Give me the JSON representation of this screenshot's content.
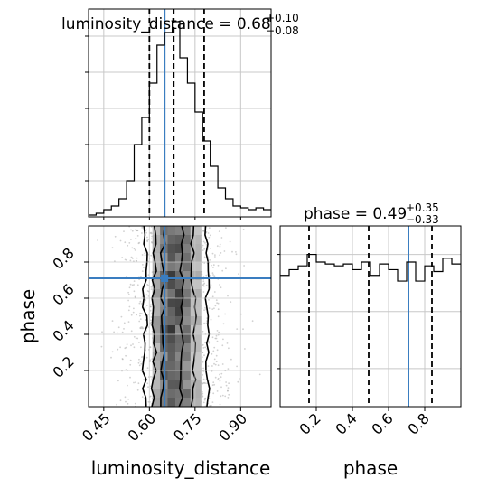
{
  "chart_data": [
    {
      "panel": "marginal",
      "type": "bar",
      "param": "luminosity_distance",
      "title": {
        "label": "luminosity_distance = 0.68",
        "sup": "+0.10",
        "sub": "−0.08"
      },
      "xlim": [
        0.4,
        1.0
      ],
      "bin_edges": [
        0.4,
        0.425,
        0.45,
        0.475,
        0.5,
        0.525,
        0.55,
        0.575,
        0.6,
        0.625,
        0.65,
        0.675,
        0.7,
        0.725,
        0.75,
        0.775,
        0.8,
        0.825,
        0.85,
        0.875,
        0.9,
        0.925,
        0.95,
        0.975,
        1.0
      ],
      "values": [
        1,
        2,
        4,
        6,
        10,
        20,
        40,
        55,
        74,
        95,
        102,
        108,
        88,
        74,
        58,
        42,
        28,
        16,
        10,
        6,
        5,
        4,
        5,
        4
      ],
      "ylim": [
        0,
        115
      ],
      "quantiles": [
        0.6,
        0.68,
        0.78
      ],
      "truth": 0.65,
      "grid": true
    },
    {
      "panel": "marginal",
      "type": "bar",
      "param": "phase",
      "title": {
        "label": "phase = 0.49",
        "sup": "+0.35",
        "sub": "−0.33"
      },
      "xlim": [
        0.0,
        1.0
      ],
      "bin_edges": [
        0.0,
        0.05,
        0.1,
        0.15,
        0.2,
        0.25,
        0.3,
        0.35,
        0.4,
        0.45,
        0.5,
        0.55,
        0.6,
        0.65,
        0.7,
        0.75,
        0.8,
        0.85,
        0.9,
        0.95,
        1.0
      ],
      "values": [
        69,
        72,
        74,
        80,
        76,
        75,
        74,
        75,
        72,
        76,
        69,
        75,
        72,
        66,
        76,
        66,
        74,
        71,
        78,
        75
      ],
      "ylim": [
        0,
        95
      ],
      "quantiles": [
        0.16,
        0.49,
        0.84
      ],
      "truth": 0.71,
      "xticks": [
        "0.2",
        "0.4",
        "0.6",
        "0.8"
      ],
      "xlabel": "phase",
      "grid": true
    },
    {
      "panel": "joint",
      "type": "heatmap",
      "params": [
        "luminosity_distance",
        "phase"
      ],
      "xlim": [
        0.4,
        1.0
      ],
      "ylim": [
        0.0,
        1.0
      ],
      "xticks": [
        "0.45",
        "0.60",
        "0.75",
        "0.90"
      ],
      "yticks": [
        "0.2",
        "0.4",
        "0.6",
        "0.8"
      ],
      "xlabel": "luminosity_distance",
      "ylabel": "phase",
      "truth": [
        0.65,
        0.71
      ],
      "grid": true
    }
  ]
}
